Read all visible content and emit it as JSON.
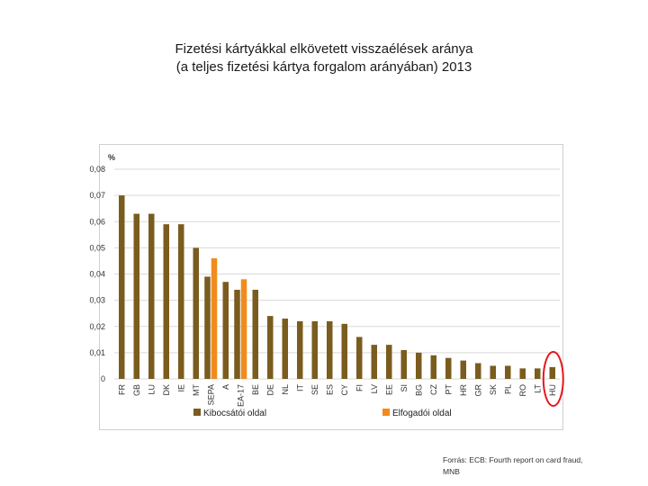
{
  "title": {
    "line1": "Fizetési kártyákkal elkövetett visszaélések aránya",
    "line2": "(a teljes fizetési kártya forgalom arányában) 2013"
  },
  "source": {
    "line1": "Forrás: ECB: Fourth report on card fraud,",
    "line2": "MNB"
  },
  "colors": {
    "issuer": "#7a5c1e",
    "acquirer": "#f08c1c",
    "highlight": "#e8161d",
    "grid": "#d9d9d9"
  },
  "chart_data": {
    "type": "bar",
    "title": "Fizetési kártyákkal elkövetett visszaélések aránya (a teljes fizetési kártya forgalom arányában) 2013",
    "ylabel": "%",
    "xlabel": "",
    "ylim": [
      0,
      0.08
    ],
    "yticks": [
      "0",
      "0,01",
      "0,02",
      "0,03",
      "0,04",
      "0,05",
      "0,06",
      "0,07",
      "0,08"
    ],
    "grid": true,
    "legend_position": "bottom",
    "categories": [
      "FR",
      "GB",
      "LU",
      "DK",
      "IE",
      "MT",
      "SEPA",
      "A",
      "EA-17",
      "BE",
      "DE",
      "NL",
      "IT",
      "SE",
      "ES",
      "CY",
      "FI",
      "LV",
      "EE",
      "SI",
      "BG",
      "CZ",
      "PT",
      "HR",
      "GR",
      "SK",
      "PL",
      "RO",
      "LT",
      "HU"
    ],
    "series": [
      {
        "name": "Kibocsátói oldal",
        "values": [
          0.07,
          0.063,
          0.063,
          0.059,
          0.059,
          0.05,
          0.039,
          0.037,
          0.034,
          0.034,
          0.024,
          0.023,
          0.022,
          0.022,
          0.022,
          0.021,
          0.016,
          0.013,
          0.013,
          0.011,
          0.01,
          0.009,
          0.008,
          0.007,
          0.006,
          0.005,
          0.005,
          0.004,
          0.004,
          0.0045
        ]
      },
      {
        "name": "Elfogadói oldal",
        "values": [
          null,
          null,
          null,
          null,
          null,
          null,
          0.046,
          null,
          0.038,
          null,
          null,
          null,
          null,
          null,
          null,
          null,
          null,
          null,
          null,
          null,
          null,
          null,
          null,
          null,
          null,
          null,
          null,
          null,
          null,
          null
        ]
      }
    ],
    "annotations": [
      {
        "category": "HU",
        "type": "red-circle"
      }
    ]
  }
}
